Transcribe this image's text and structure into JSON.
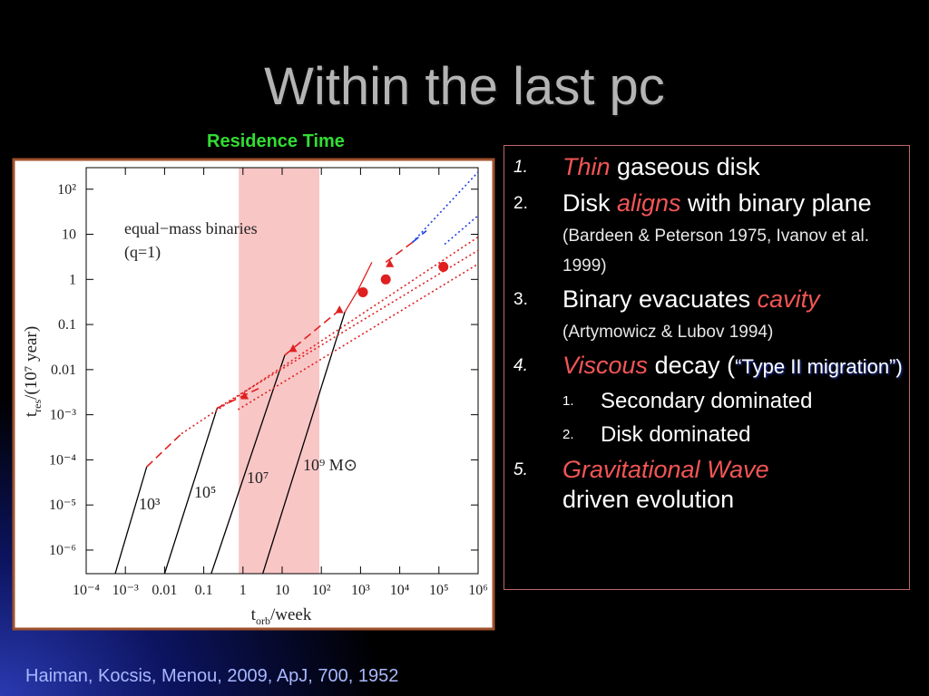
{
  "slide_title": "Within the last pc",
  "chart_data": {
    "type": "line",
    "title": "Residence Time",
    "xscale": "log",
    "yscale": "log",
    "xlim": [
      0.0001,
      1000000
    ],
    "ylim": [
      3e-07,
      300
    ],
    "xticks": [
      {
        "value": 0.0001,
        "label": "10⁻⁴"
      },
      {
        "value": 0.001,
        "label": "10⁻³"
      },
      0.01,
      0.1,
      1,
      10,
      {
        "value": 100,
        "label": "10²"
      },
      {
        "value": 1000,
        "label": "10³"
      },
      {
        "value": 10000,
        "label": "10⁴"
      },
      {
        "value": 100000,
        "label": "10⁵"
      },
      {
        "value": 1000000,
        "label": "10⁶"
      }
    ],
    "yticks": [
      {
        "value": 100,
        "label": "10²"
      },
      10,
      1,
      0.1,
      0.01,
      {
        "value": 0.001,
        "label": "10⁻³"
      },
      {
        "value": 0.0001,
        "label": "10⁻⁴"
      },
      {
        "value": 1e-05,
        "label": "10⁻⁵"
      },
      {
        "value": 1e-06,
        "label": "10⁻⁶"
      }
    ],
    "xlabel": {
      "main": "t",
      "sub": "orb",
      "rest": "/week"
    },
    "ylabel": {
      "main": "t",
      "sub": "res",
      "rest": "/(10⁷ year)"
    },
    "shaded_xrange": [
      0.78,
      89
    ],
    "annotations": [
      "equal−mass  binaries",
      "(q=1)",
      "10³",
      "10⁵",
      "10⁷",
      "10⁹  M⊙"
    ],
    "series": [
      {
        "color": "#000000",
        "style": "solid",
        "x": [
          0.00055,
          0.0035
        ],
        "values": [
          3e-07,
          7e-05
        ]
      },
      {
        "color": "#000000",
        "style": "solid",
        "x": [
          0.01,
          0.22
        ],
        "values": [
          3e-07,
          0.0014
        ]
      },
      {
        "color": "#000000",
        "style": "solid",
        "x": [
          0.155,
          11.7
        ],
        "values": [
          3e-07,
          0.021
        ]
      },
      {
        "color": "#000000",
        "style": "solid",
        "x": [
          3.2,
          400
        ],
        "values": [
          3e-07,
          0.19
        ]
      },
      {
        "color": "#e02020",
        "style": "dashed",
        "x": [
          0.0035,
          0.027
        ],
        "values": [
          7e-05,
          0.00038
        ]
      },
      {
        "color": "#e02020",
        "style": "dashed",
        "x": [
          0.22,
          2.5
        ],
        "values": [
          0.0014,
          0.0038
        ]
      },
      {
        "color": "#e02020",
        "style": "dashed",
        "x": [
          11.7,
          355
        ],
        "values": [
          0.021,
          0.24
        ]
      },
      {
        "color": "#e02020",
        "style": "solid",
        "x": [
          400,
          880,
          1950
        ],
        "values": [
          0.19,
          0.6,
          2.4
        ]
      },
      {
        "color": "#e02020",
        "style": "dashed",
        "x": [
          4400,
          21000
        ],
        "values": [
          2.4,
          6.6
        ]
      },
      {
        "color": "#2040e0",
        "style": "dashed",
        "x": [
          21000,
          48000
        ],
        "values": [
          6.6,
          12
        ]
      },
      {
        "color": "#e02020",
        "style": "dotted",
        "x": [
          0.027,
          1000000
        ],
        "values": [
          0.00038,
          8.7
        ]
      },
      {
        "color": "#e02020",
        "style": "dotted",
        "x": [
          0.22,
          1000000
        ],
        "values": [
          0.0014,
          4.4
        ]
      },
      {
        "color": "#e02020",
        "style": "dotted",
        "x": [
          0.75,
          1000000
        ],
        "values": [
          0.0013,
          2.2
        ]
      },
      {
        "color": "#2040e0",
        "style": "dotted",
        "x": [
          21000,
          1000000
        ],
        "values": [
          6.6,
          240
        ]
      },
      {
        "color": "#2040e0",
        "style": "dotted",
        "x": [
          140000,
          1000000
        ],
        "values": [
          6.0,
          26
        ]
      },
      {
        "color": "#e02020",
        "style": "circle",
        "x": [
          1150,
          4400,
          130000
        ],
        "values": [
          0.52,
          1,
          1.9
        ]
      },
      {
        "color": "#e02020",
        "style": "triangle",
        "x": [
          1.1,
          19,
          290,
          5600
        ],
        "values": [
          0.0026,
          0.029,
          0.21,
          2.2
        ]
      }
    ]
  },
  "list": [
    {
      "number": "1.",
      "parts": [
        "Thin",
        " gaseous disk"
      ]
    },
    {
      "number": "2.",
      "parts": [
        "Disk ",
        "aligns",
        " with binary plane",
        " (Bardeen & Peterson 1975, Ivanov et al. 1999)"
      ]
    },
    {
      "number": "3.",
      "parts": [
        "Binary evacuates ",
        "cavity",
        "(Artymowicz & Lubov 1994)"
      ]
    },
    {
      "number": "4.",
      "parts": [
        "Viscous",
        " decay (",
        "“Type II migration”)"
      ],
      "sub": [
        {
          "number": "1.",
          "text": "Secondary dominated"
        },
        {
          "number": "2.",
          "text": "Disk dominated"
        }
      ]
    },
    {
      "number": "5.",
      "parts": [
        "Gravitational Wave",
        "driven evolution"
      ]
    }
  ],
  "citation": "Haiman, Kocsis, Menou, 2009, ApJ, 700, 1952"
}
